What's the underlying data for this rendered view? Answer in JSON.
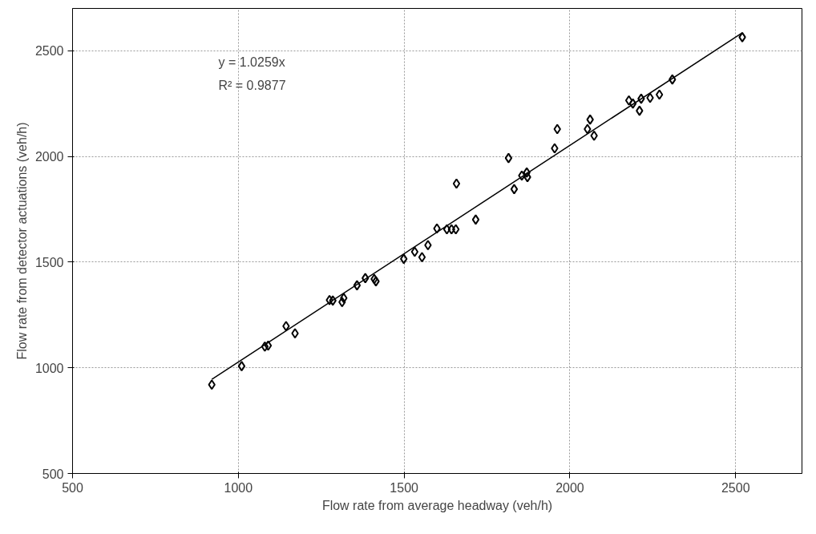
{
  "chart_data": {
    "type": "scatter",
    "xlabel": "Flow rate from average headway (veh/h)",
    "ylabel": "Flow rate from detector actuations (veh/h)",
    "annotations": [
      "y = 1.0259x",
      "R² = 0.9877"
    ],
    "xlim": [
      500,
      2700
    ],
    "ylim": [
      500,
      2700
    ],
    "xticks": [
      500,
      1000,
      1500,
      2000,
      2500
    ],
    "yticks": [
      500,
      1000,
      1500,
      2000,
      2500
    ],
    "grid": true,
    "marker": "diamond",
    "series": [
      {
        "color": "#000000",
        "x": [
          920,
          1010,
          1080,
          1090,
          1144,
          1171,
          1275,
          1285,
          1313,
          1318,
          1358,
          1383,
          1410,
          1415,
          1499,
          1532,
          1554,
          1572,
          1599,
          1629,
          1643,
          1656,
          1658,
          1716,
          1815,
          1832,
          1855,
          1870,
          1872,
          1954,
          1962,
          2053,
          2061,
          2073,
          2178,
          2190,
          2210,
          2215,
          2242,
          2270,
          2309,
          2520
        ],
        "values": [
          920,
          1008,
          1100,
          1105,
          1197,
          1163,
          1320,
          1318,
          1311,
          1330,
          1390,
          1424,
          1420,
          1409,
          1515,
          1549,
          1523,
          1580,
          1659,
          1655,
          1655,
          1655,
          1871,
          1701,
          1992,
          1845,
          1909,
          1924,
          1902,
          2038,
          2129,
          2129,
          2174,
          2098,
          2265,
          2250,
          2216,
          2273,
          2277,
          2292,
          2364,
          2564
        ]
      },
      {
        "type": "line",
        "marker": "none",
        "color": "#000000",
        "x": [
          920,
          2520
        ],
        "values": [
          945,
          2585
        ]
      }
    ]
  }
}
